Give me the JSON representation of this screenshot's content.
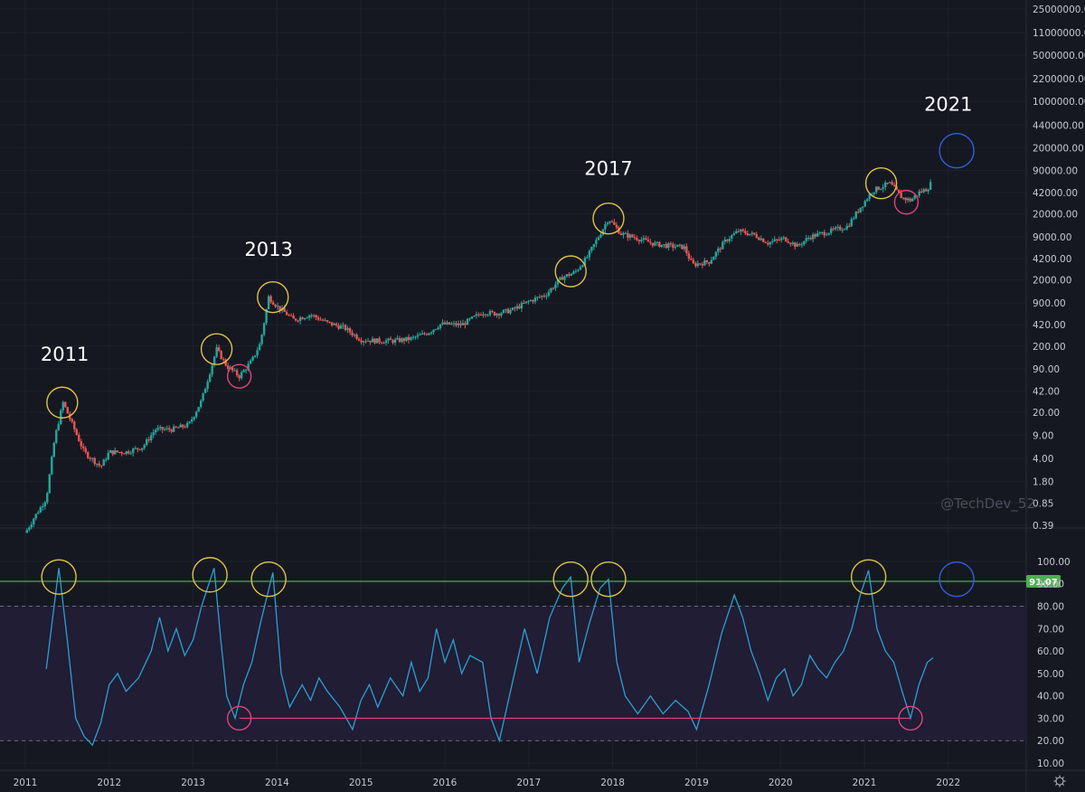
{
  "watermark": "@TechDev_52",
  "settings_icon": "gear-icon",
  "colors": {
    "background": "#151821",
    "grid": "#1e222d",
    "axis_text": "#c7c9d0",
    "up_candle": "#26a69a",
    "down_candle": "#ef5350",
    "rsi_line": "#2e9fd1",
    "rsi_band_fill": "#201d35",
    "level_line": "#4caf50",
    "top_circle": "#e0c24a",
    "bottom_circle": "#e0457b",
    "projection_circle": "#2f5fe0",
    "support_line": "#e0457b"
  },
  "chart_data": [
    {
      "type": "candlestick",
      "title": "",
      "scale": "log",
      "x_range": [
        "2011-01",
        "2022-03"
      ],
      "y_range": [
        0.39,
        25000000
      ],
      "y_ticks": [
        "25000000.00",
        "11000000.00",
        "5000000.00",
        "2200000.00",
        "1000000.00",
        "440000.00",
        "200000.00",
        "90000.00",
        "42000.00",
        "20000.00",
        "9000.00",
        "4200.00",
        "2000.00",
        "900.00",
        "420.00",
        "200.00",
        "90.00",
        "42.00",
        "20.00",
        "9.00",
        "4.00",
        "1.80",
        "0.85",
        "0.39"
      ],
      "x_ticks": [
        "2011",
        "2012",
        "2013",
        "2014",
        "2015",
        "2016",
        "2017",
        "2018",
        "2019",
        "2020",
        "2021",
        "2022"
      ],
      "annotations": [
        {
          "label": "2011",
          "date": 2011.47,
          "value": 30
        },
        {
          "label": "2013",
          "date": 2013.9,
          "value": 1150
        },
        {
          "label": "2017",
          "date": 2017.95,
          "value": 19500
        },
        {
          "label": "2021",
          "date": 2022.0,
          "value": 180000
        }
      ],
      "top_markers": [
        {
          "date": 2011.44,
          "value": 28
        },
        {
          "date": 2013.28,
          "value": 180
        },
        {
          "date": 2013.95,
          "value": 1100
        },
        {
          "date": 2017.5,
          "value": 2700
        },
        {
          "date": 2017.95,
          "value": 17000
        },
        {
          "date": 2021.2,
          "value": 58000
        }
      ],
      "bottom_markers": [
        {
          "date": 2013.55,
          "value": 70
        },
        {
          "date": 2021.5,
          "value": 30000
        }
      ],
      "projection_marker": {
        "date": 2022.1,
        "value": 180000
      },
      "anchors": [
        [
          2011.0,
          0.3
        ],
        [
          2011.1,
          0.5
        ],
        [
          2011.25,
          1.0
        ],
        [
          2011.35,
          8
        ],
        [
          2011.45,
          28
        ],
        [
          2011.55,
          14
        ],
        [
          2011.7,
          5
        ],
        [
          2011.9,
          3
        ],
        [
          2012.0,
          5
        ],
        [
          2012.2,
          5
        ],
        [
          2012.4,
          6
        ],
        [
          2012.55,
          11
        ],
        [
          2012.75,
          11
        ],
        [
          2012.95,
          13
        ],
        [
          2013.1,
          30
        ],
        [
          2013.28,
          180
        ],
        [
          2013.4,
          100
        ],
        [
          2013.55,
          70
        ],
        [
          2013.7,
          120
        ],
        [
          2013.8,
          220
        ],
        [
          2013.9,
          1100
        ],
        [
          2014.0,
          800
        ],
        [
          2014.2,
          500
        ],
        [
          2014.4,
          600
        ],
        [
          2014.6,
          450
        ],
        [
          2014.8,
          380
        ],
        [
          2015.0,
          250
        ],
        [
          2015.2,
          240
        ],
        [
          2015.4,
          240
        ],
        [
          2015.6,
          260
        ],
        [
          2015.8,
          320
        ],
        [
          2015.95,
          430
        ],
        [
          2016.2,
          420
        ],
        [
          2016.45,
          650
        ],
        [
          2016.6,
          620
        ],
        [
          2016.8,
          700
        ],
        [
          2017.0,
          950
        ],
        [
          2017.2,
          1200
        ],
        [
          2017.4,
          2200
        ],
        [
          2017.55,
          2600
        ],
        [
          2017.7,
          4500
        ],
        [
          2017.85,
          10000
        ],
        [
          2017.95,
          17000
        ],
        [
          2018.1,
          10000
        ],
        [
          2018.3,
          8500
        ],
        [
          2018.5,
          7000
        ],
        [
          2018.7,
          6500
        ],
        [
          2018.85,
          6300
        ],
        [
          2018.95,
          3400
        ],
        [
          2019.15,
          3800
        ],
        [
          2019.35,
          8000
        ],
        [
          2019.5,
          11000
        ],
        [
          2019.7,
          9500
        ],
        [
          2019.85,
          7300
        ],
        [
          2020.05,
          8500
        ],
        [
          2020.2,
          6500
        ],
        [
          2020.35,
          9000
        ],
        [
          2020.6,
          11000
        ],
        [
          2020.8,
          13000
        ],
        [
          2020.95,
          25000
        ],
        [
          2021.1,
          45000
        ],
        [
          2021.3,
          58000
        ],
        [
          2021.45,
          35000
        ],
        [
          2021.55,
          32000
        ],
        [
          2021.65,
          42000
        ],
        [
          2021.75,
          48000
        ],
        [
          2021.8,
          60000
        ]
      ]
    },
    {
      "type": "line",
      "title": "",
      "y_range": [
        8,
        106
      ],
      "y_ticks": [
        "100.00",
        "90.00",
        "80.00",
        "70.00",
        "60.00",
        "50.00",
        "40.00",
        "30.00",
        "20.00",
        "10.00"
      ],
      "x_ticks": [
        "2011",
        "2012",
        "2013",
        "2014",
        "2015",
        "2016",
        "2017",
        "2018",
        "2019",
        "2020",
        "2021",
        "2022"
      ],
      "level": 91.07,
      "level_label": "91.07",
      "band": [
        20,
        80
      ],
      "support_line": {
        "from": 2013.55,
        "to": 2021.55,
        "value": 30
      },
      "top_markers": [
        {
          "date": 2011.4,
          "value": 93
        },
        {
          "date": 2013.2,
          "value": 94
        },
        {
          "date": 2013.9,
          "value": 92
        },
        {
          "date": 2017.5,
          "value": 92
        },
        {
          "date": 2017.95,
          "value": 92
        },
        {
          "date": 2021.05,
          "value": 93
        }
      ],
      "bottom_markers": [
        {
          "date": 2013.55,
          "value": 30
        },
        {
          "date": 2021.55,
          "value": 30
        }
      ],
      "projection_marker": {
        "date": 2022.1,
        "value": 92
      },
      "anchors": [
        [
          2011.25,
          52
        ],
        [
          2011.4,
          97
        ],
        [
          2011.5,
          65
        ],
        [
          2011.6,
          30
        ],
        [
          2011.7,
          22
        ],
        [
          2011.8,
          18
        ],
        [
          2011.9,
          28
        ],
        [
          2012.0,
          45
        ],
        [
          2012.1,
          50
        ],
        [
          2012.2,
          42
        ],
        [
          2012.35,
          48
        ],
        [
          2012.5,
          60
        ],
        [
          2012.6,
          75
        ],
        [
          2012.7,
          60
        ],
        [
          2012.8,
          70
        ],
        [
          2012.9,
          58
        ],
        [
          2013.0,
          65
        ],
        [
          2013.1,
          80
        ],
        [
          2013.25,
          97
        ],
        [
          2013.33,
          65
        ],
        [
          2013.4,
          40
        ],
        [
          2013.5,
          30
        ],
        [
          2013.6,
          45
        ],
        [
          2013.7,
          55
        ],
        [
          2013.8,
          72
        ],
        [
          2013.95,
          95
        ],
        [
          2014.05,
          50
        ],
        [
          2014.15,
          35
        ],
        [
          2014.3,
          45
        ],
        [
          2014.4,
          38
        ],
        [
          2014.5,
          48
        ],
        [
          2014.6,
          42
        ],
        [
          2014.75,
          35
        ],
        [
          2014.9,
          25
        ],
        [
          2015.0,
          38
        ],
        [
          2015.1,
          45
        ],
        [
          2015.2,
          35
        ],
        [
          2015.35,
          48
        ],
        [
          2015.5,
          40
        ],
        [
          2015.6,
          55
        ],
        [
          2015.7,
          42
        ],
        [
          2015.8,
          48
        ],
        [
          2015.9,
          70
        ],
        [
          2016.0,
          55
        ],
        [
          2016.1,
          65
        ],
        [
          2016.2,
          50
        ],
        [
          2016.3,
          58
        ],
        [
          2016.45,
          55
        ],
        [
          2016.55,
          30
        ],
        [
          2016.65,
          20
        ],
        [
          2016.8,
          45
        ],
        [
          2016.95,
          70
        ],
        [
          2017.1,
          50
        ],
        [
          2017.25,
          75
        ],
        [
          2017.4,
          88
        ],
        [
          2017.5,
          93
        ],
        [
          2017.6,
          55
        ],
        [
          2017.72,
          72
        ],
        [
          2017.85,
          88
        ],
        [
          2017.95,
          92
        ],
        [
          2018.05,
          55
        ],
        [
          2018.15,
          40
        ],
        [
          2018.3,
          32
        ],
        [
          2018.45,
          40
        ],
        [
          2018.6,
          32
        ],
        [
          2018.75,
          38
        ],
        [
          2018.9,
          33
        ],
        [
          2019.0,
          25
        ],
        [
          2019.15,
          45
        ],
        [
          2019.3,
          68
        ],
        [
          2019.45,
          85
        ],
        [
          2019.55,
          75
        ],
        [
          2019.65,
          60
        ],
        [
          2019.75,
          50
        ],
        [
          2019.85,
          38
        ],
        [
          2019.95,
          48
        ],
        [
          2020.05,
          52
        ],
        [
          2020.15,
          40
        ],
        [
          2020.25,
          45
        ],
        [
          2020.35,
          58
        ],
        [
          2020.45,
          52
        ],
        [
          2020.55,
          48
        ],
        [
          2020.65,
          55
        ],
        [
          2020.75,
          60
        ],
        [
          2020.85,
          70
        ],
        [
          2020.95,
          85
        ],
        [
          2021.05,
          96
        ],
        [
          2021.15,
          70
        ],
        [
          2021.25,
          60
        ],
        [
          2021.35,
          55
        ],
        [
          2021.45,
          42
        ],
        [
          2021.55,
          30
        ],
        [
          2021.65,
          45
        ],
        [
          2021.75,
          55
        ],
        [
          2021.82,
          57
        ]
      ]
    }
  ]
}
